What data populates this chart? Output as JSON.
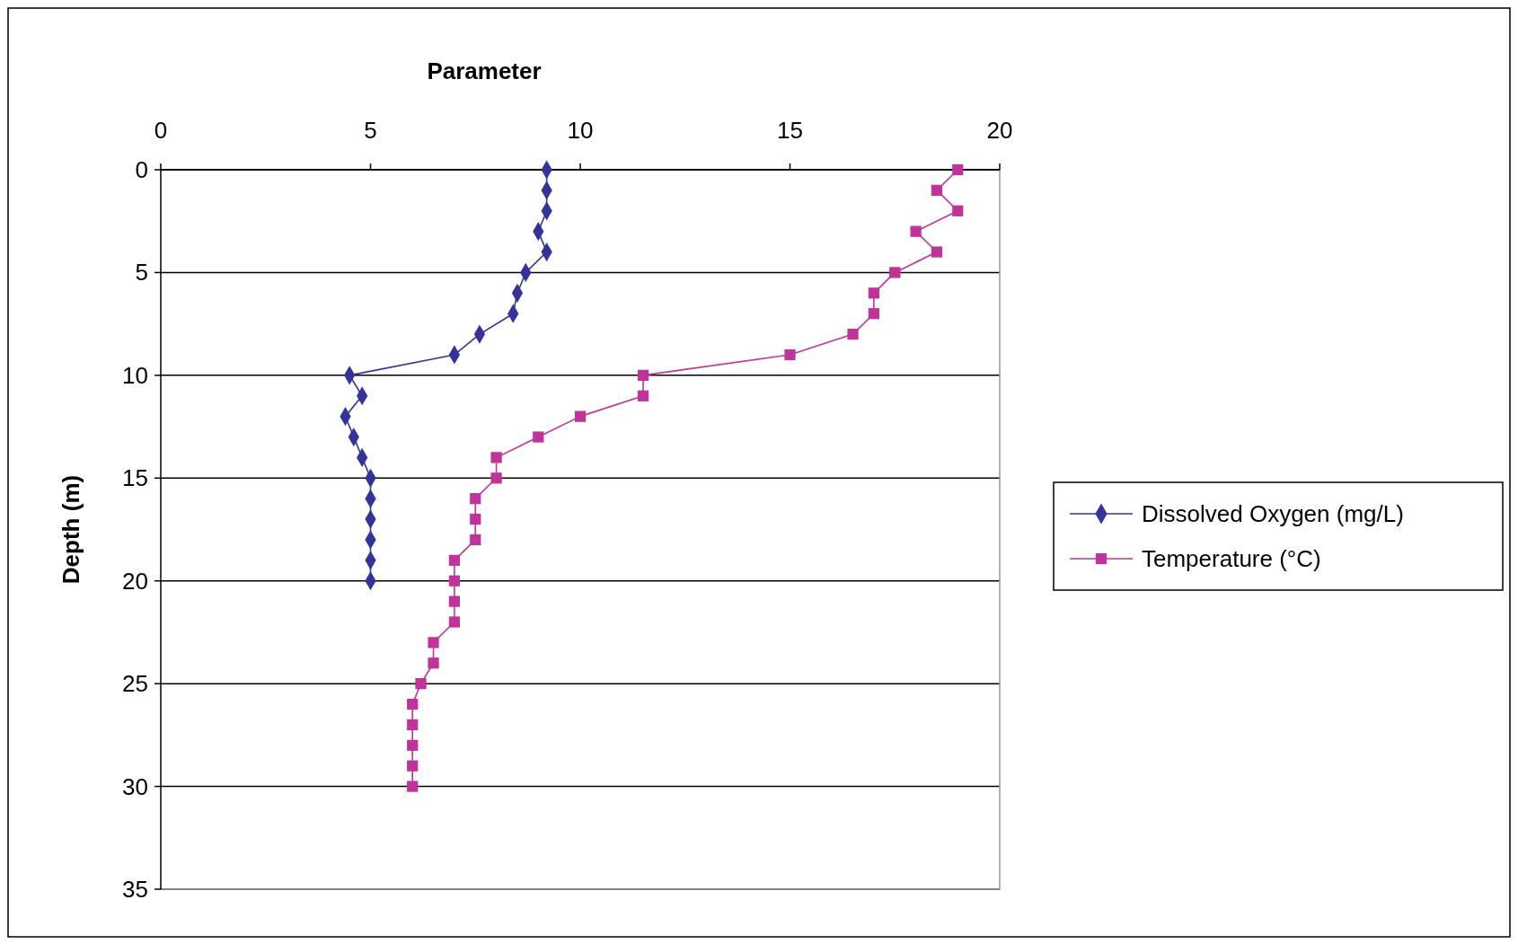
{
  "chart_data": {
    "type": "line",
    "xlabel": "Parameter",
    "ylabel": "Depth (m)",
    "xlim": [
      0,
      20
    ],
    "xticks": [
      0,
      5,
      10,
      15,
      20
    ],
    "ylim": [
      35,
      0
    ],
    "yticks": [
      0,
      5,
      10,
      15,
      20,
      25,
      30,
      35
    ],
    "grid": "y",
    "legend": "right",
    "series": [
      {
        "name": "Dissolved Oxygen (mg/L)",
        "color": "#333399",
        "marker": "diamond",
        "x": [
          9.2,
          9.2,
          9.2,
          9.0,
          9.2,
          8.7,
          8.5,
          8.4,
          7.6,
          7.0,
          4.5,
          4.8,
          4.4,
          4.6,
          4.8,
          5.0,
          5.0,
          5.0,
          5.0,
          5.0,
          5.0
        ],
        "values": [
          0,
          1,
          2,
          3,
          4,
          5,
          6,
          7,
          8,
          9,
          10,
          11,
          12,
          13,
          14,
          15,
          16,
          17,
          18,
          19,
          20
        ]
      },
      {
        "name": "Temperature (°C)",
        "color": "#c03399",
        "marker": "square",
        "x": [
          19.0,
          18.5,
          19.0,
          18.0,
          18.5,
          17.5,
          17.0,
          17.0,
          16.5,
          15.0,
          11.5,
          11.5,
          10.0,
          9.0,
          8.0,
          8.0,
          7.5,
          7.5,
          7.5,
          7.0,
          7.0,
          7.0,
          7.0,
          6.5,
          6.5,
          6.2,
          6.0,
          6.0,
          6.0,
          6.0,
          6.0
        ],
        "values": [
          0,
          1,
          2,
          3,
          4,
          5,
          6,
          7,
          8,
          9,
          10,
          11,
          12,
          13,
          14,
          15,
          16,
          17,
          18,
          19,
          20,
          21,
          22,
          23,
          24,
          25,
          26,
          27,
          28,
          29,
          30
        ]
      }
    ]
  }
}
